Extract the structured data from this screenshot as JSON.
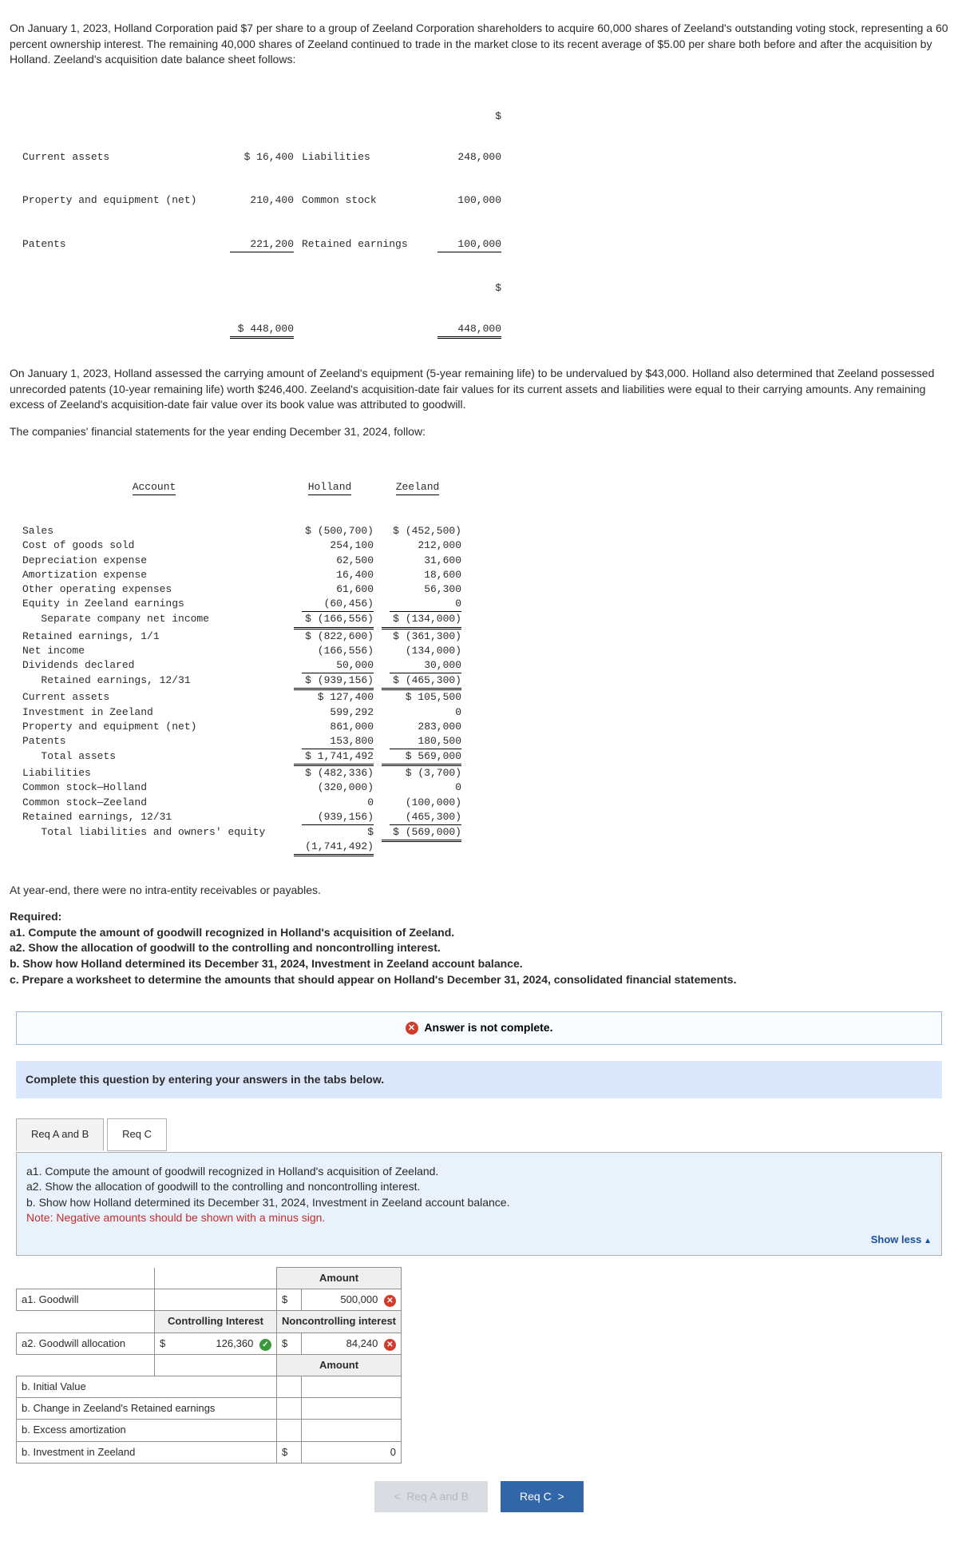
{
  "intro": {
    "p1": "On January 1, 2023, Holland Corporation paid $7 per share to a group of Zeeland Corporation shareholders to acquire 60,000 shares of Zeeland's outstanding voting stock, representing a 60 percent ownership interest. The remaining 40,000 shares of Zeeland continued to trade in the market close to its recent average of $5.00 per share both before and after the acquisition by Holland. Zeeland's acquisition date balance sheet follows:"
  },
  "balance_sheet": {
    "rows": [
      {
        "l": "Current assets",
        "v1": "$ 16,400",
        "r": "Liabilities",
        "v2": "$\n248,000"
      },
      {
        "l": "Property and equipment (net)",
        "v1": "210,400",
        "r": "Common stock",
        "v2": "100,000"
      },
      {
        "l": "Patents",
        "v1": "221,200",
        "r": "Retained earnings",
        "v2": "100,000"
      }
    ],
    "tot_left": "$ 448,000",
    "tot_right": "$\n448,000"
  },
  "narrative2": "On January 1, 2023, Holland assessed the carrying amount of Zeeland's equipment (5-year remaining life) to be undervalued by $43,000. Holland also determined that Zeeland possessed unrecorded patents (10-year remaining life) worth $246,400. Zeeland's acquisition-date fair values for its current assets and liabilities were equal to their carrying amounts. Any remaining excess of Zeeland's acquisition-date fair value over its book value was attributed to goodwill.",
  "narrative3": "The companies' financial statements for the year ending December 31, 2024, follow:",
  "fin": {
    "head": {
      "c0": "Account",
      "c1": "Holland",
      "c2": "Zeeland"
    },
    "rows": [
      {
        "a": "Sales",
        "h": "$ (500,700)",
        "z": "$ (452,500)"
      },
      {
        "a": "Cost of goods sold",
        "h": "254,100",
        "z": "212,000"
      },
      {
        "a": "Depreciation expense",
        "h": "62,500",
        "z": "31,600"
      },
      {
        "a": "Amortization expense",
        "h": "16,400",
        "z": "18,600"
      },
      {
        "a": "Other operating expenses",
        "h": "61,600",
        "z": "56,300"
      },
      {
        "a": "Equity in Zeeland earnings",
        "h": "(60,456)",
        "z": "0",
        "uline": true
      },
      {
        "a": "   Separate company net income",
        "h": "$ (166,556)",
        "z": "$ (134,000)",
        "dbl": true
      },
      {
        "a": "Retained earnings, 1/1",
        "h": "$ (822,600)",
        "z": "$ (361,300)"
      },
      {
        "a": "Net income",
        "h": "(166,556)",
        "z": "(134,000)"
      },
      {
        "a": "Dividends declared",
        "h": "50,000",
        "z": "30,000",
        "uline": true
      },
      {
        "a": "   Retained earnings, 12/31",
        "h": "$ (939,156)",
        "z": "$ (465,300)",
        "dbl": true
      },
      {
        "a": "Current assets",
        "h": "$ 127,400",
        "z": "$ 105,500"
      },
      {
        "a": "Investment in Zeeland",
        "h": "599,292",
        "z": "0"
      },
      {
        "a": "Property and equipment (net)",
        "h": "861,000",
        "z": "283,000"
      },
      {
        "a": "Patents",
        "h": "153,800",
        "z": "180,500",
        "uline": true
      },
      {
        "a": "   Total assets",
        "h": "$ 1,741,492",
        "z": "$ 569,000",
        "dbl": true
      },
      {
        "a": "Liabilities",
        "h": "$ (482,336)",
        "z": "$ (3,700)"
      },
      {
        "a": "Common stock—Holland",
        "h": "(320,000)",
        "z": "0"
      },
      {
        "a": "Common stock—Zeeland",
        "h": "0",
        "z": "(100,000)"
      },
      {
        "a": "Retained earnings, 12/31",
        "h": "(939,156)",
        "z": "(465,300)",
        "uline": true
      },
      {
        "a": "   Total liabilities and owners' equity",
        "h": "$\n(1,741,492)",
        "z": "$ (569,000)",
        "dbl": true
      }
    ]
  },
  "post": "At year-end, there were no intra-entity receivables or payables.",
  "required": {
    "heading": "Required:",
    "a1": "a1. Compute the amount of goodwill recognized in Holland's acquisition of Zeeland.",
    "a2": "a2. Show the allocation of goodwill to the controlling and noncontrolling interest.",
    "b": "b. Show how Holland determined its December 31, 2024, Investment in Zeeland account balance.",
    "c": "c. Prepare a worksheet to determine the amounts that should appear on Holland's December 31, 2024, consolidated financial statements."
  },
  "alert": "Answer is not complete.",
  "instruction": "Complete this question by entering your answers in the tabs below.",
  "tabs": {
    "t1": "Req A and B",
    "t2": "Req C"
  },
  "req_pane": {
    "l1": "a1. Compute the amount of goodwill recognized in Holland's acquisition of Zeeland.",
    "l2": "a2. Show the allocation of goodwill to the controlling and noncontrolling interest.",
    "l3": "b. Show how Holland determined its December 31, 2024, Investment in Zeeland account balance.",
    "note": "Note: Negative amounts should be shown with a minus sign.",
    "showless": "Show less"
  },
  "answers": {
    "colA": "Amount",
    "r1": {
      "label": "a1. Goodwill",
      "cur": "$",
      "val": "500,000",
      "mark": "wrong"
    },
    "hdr2a": "Controlling Interest",
    "hdr2b": "Noncontrolling interest",
    "r2": {
      "label": "a2. Goodwill allocation",
      "cur1": "$",
      "v1": "126,360",
      "m1": "right",
      "cur2": "$",
      "v2": "84,240",
      "m2": "wrong"
    },
    "colB": "Amount",
    "b_rows": [
      "b. Initial Value",
      "b. Change in Zeeland's Retained earnings",
      "b. Excess amortization",
      "b. Investment in Zeeland"
    ],
    "b_tot_cur": "$",
    "b_tot": "0"
  },
  "nav": {
    "prev": "Req A and B",
    "next": "Req C"
  }
}
